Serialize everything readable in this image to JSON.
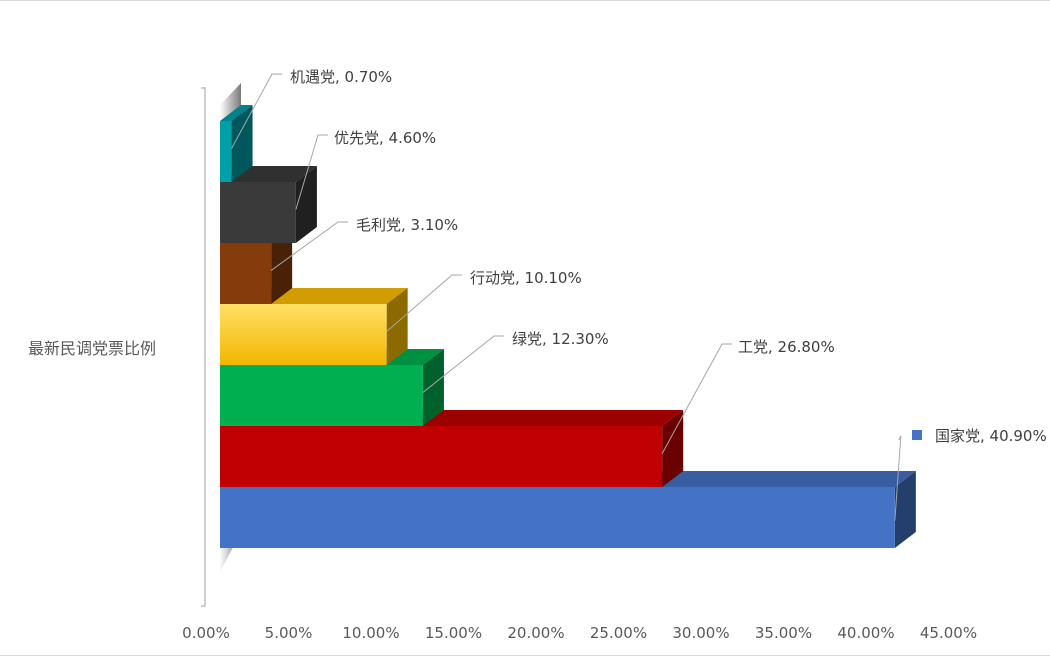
{
  "chart_data": {
    "type": "bar",
    "orientation": "horizontal",
    "style": "3d-clustered",
    "category": "最新民调党票比例",
    "series": [
      {
        "name": "国家党",
        "value": 40.9,
        "label": "国家党, 40.90%",
        "color": "#4472C4",
        "legend": true
      },
      {
        "name": "工党",
        "value": 26.8,
        "label": "工党, 26.80%",
        "color": "#C00000"
      },
      {
        "name": "绿党",
        "value": 12.3,
        "label": "绿党, 12.30%",
        "color": "#00B050"
      },
      {
        "name": "行动党",
        "value": 10.1,
        "label": "行动党, 10.10%",
        "color": "#FFC000"
      },
      {
        "name": "毛利党",
        "value": 3.1,
        "label": "毛利党, 3.10%",
        "color": "#843C0C"
      },
      {
        "name": "优先党",
        "value": 4.6,
        "label": "优先党, 4.60%",
        "color": "#3A3A3A"
      },
      {
        "name": "机遇党",
        "value": 0.7,
        "label": "机遇党, 0.70%",
        "color": "#00A0A8"
      }
    ],
    "x_ticks": [
      "0.00%",
      "5.00%",
      "10.00%",
      "15.00%",
      "20.00%",
      "25.00%",
      "30.00%",
      "35.00%",
      "40.00%",
      "45.00%"
    ],
    "xlim": [
      0,
      45
    ],
    "grid": false,
    "legend_position": "right"
  }
}
